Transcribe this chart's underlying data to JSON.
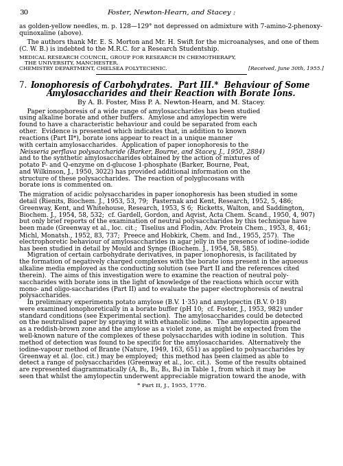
{
  "page_number": "30",
  "header_italic": "Foster, Newton-Hearn, and Stacey :",
  "top_text_lines": [
    "as golden-yellow needles, m. p. 128—129° not depressed on admixture with 7-amino-2-phenoxy-",
    "quinoxaline (above)."
  ],
  "acknowledgement": [
    "    The authors thank Mr. E. S. Morton and Mr. H. Swift for the microanalyses, and one of them",
    "(C. W. B.) is indebted to the M.R.C. for a Research Studentship."
  ],
  "institution_lines": [
    "Medical Research Council, Group for Research in Chemotherapy,",
    "    The University, Manchester.",
    "Chemistry Department, Chelsea Polytechnic."
  ],
  "received": "[Received, June 30th, 1955.]",
  "section_number": "7.",
  "section_title_line1": "Ionophoresis of Carbohydrates.  Part III.*  Behaviour of Some",
  "section_title_line2": "Amylosaccharides and their Reaction with Borate Ions.",
  "authors_line": "By A. B. Foster, Miss P. A. Newton-Hearn, and M. Stacey.",
  "abstract_lines": [
    "    Paper ionophoresis of a wide range of amylosaccharides has been studied",
    "using alkaline borate and other buffers.  Amylose and amylopectin were",
    "found to have a characteristic behaviour and could be separated from each",
    "other.  Evidence is presented which indicates that, in addition to known",
    "reactions (Part II*), borate ions appear to react in a unique manner",
    "with certain amylosaccharides.  Application of paper ionophoresis to the",
    "Neisseria perflava polysaccharide (Barker, Bourne, and Stacey, J., 1950, 2884)",
    "and to the synthetic amylosaccharides obtained by the action of mixtures of",
    "potato P- and Q-enzyme on d-glucose 1-phosphate (Barker, Bourne, Peat,",
    "and Wilkinson, J., 1950, 3022) has provided additional information on the",
    "structure of these polysaccharides.  The reaction of polyglucosans with",
    "borate ions is commented on."
  ],
  "body_lines": [
    "The migration of acidic polysaccharides in paper ionophoresis has been studied in some",
    "detail (Rienits, Biochem. J., 1953, 53, 79;  Pasternak and Kent, Research, 1952, 5, 486;",
    "Greenway, Kent, and Whitehouse, Research, 1953, S 6;  Ricketts, Walton, and Saddington,",
    "Biochem. J., 1954, 58, 532;  cf. Gardell, Gordon, and Aqvist, Acta Chem. Scand., 1950, 4, 907)",
    "but only brief reports of the examination of neutral polysaccharides by this technique have",
    "been made (Greenway et al., loc. cit.;  Tiselius and Flodin, Adv. Protein Chem., 1953, 8, 461;",
    "Michl, Monatsh., 1952, 83, 737;  Preece and Hobkirk, Chem. and Ind., 1955, 257).  The",
    "electrophoretic behaviour of amylosaccharides in agar jelly in the presence of iodine–iodide",
    "has been studied in detail by Mould and Synge (Biochem. J., 1954, 58, 585).",
    "    Migration of certain carbohydrate derivatives, in paper ionophoresis, is facilitated by",
    "the formation of negatively charged complexes with the borate ions present in the aqueous",
    "alkaline media employed as the conducting solution (see Part II and the references cited",
    "therein).  The aims of this investigation were to examine the reaction of neutral poly-",
    "saccharides with borate ions in the light of knowledge of the reactions which occur with",
    "mono- and oligo-saccharides (Part II) and to evaluate the paper electrophoresis of neutral",
    "polysaccharides.",
    "    In preliminary experiments potato amylose (B.V. 1·35) and amylopectin (B.V. 0·18)",
    "were examined ionophoretically in a borate buffer (pH 10;  cf. Foster, J., 1953, 982) under",
    "standard conditions (see Experimental section).  The amylosaccharides could be detected",
    "on the neutralised paper by spraying it with ethanolic iodine.  The amylopectin appeared",
    "as a reddish-brown zone and the amylose as a violet zone, as might be expected from the",
    "well-known nature of the complexes of these polysaccharides with iodine in solution.  This",
    "method of detection was found to be specific for the amylosaccharides.  Alternatively the",
    "iodine-vapour method of Brante (Nature, 1949, 163, 651) as applied to polysaccharides by",
    "Greenway et al. (loc. cit.) may be employed;  this method has been claimed as able to",
    "detect a range of polysaccharides (Greenway et al., loc. cit.).  Some of the results obtained",
    "are represented diagrammatically (A, B₁, B₂, B₃, B₄) in Table 1, from which it may be",
    "seen that whilst the amylopectin underwent appreciable migration toward the anode, with"
  ],
  "footnote": "* Part II, J., 1955, 1778.",
  "fig_width": 5.0,
  "fig_height": 6.79,
  "dpi": 100
}
